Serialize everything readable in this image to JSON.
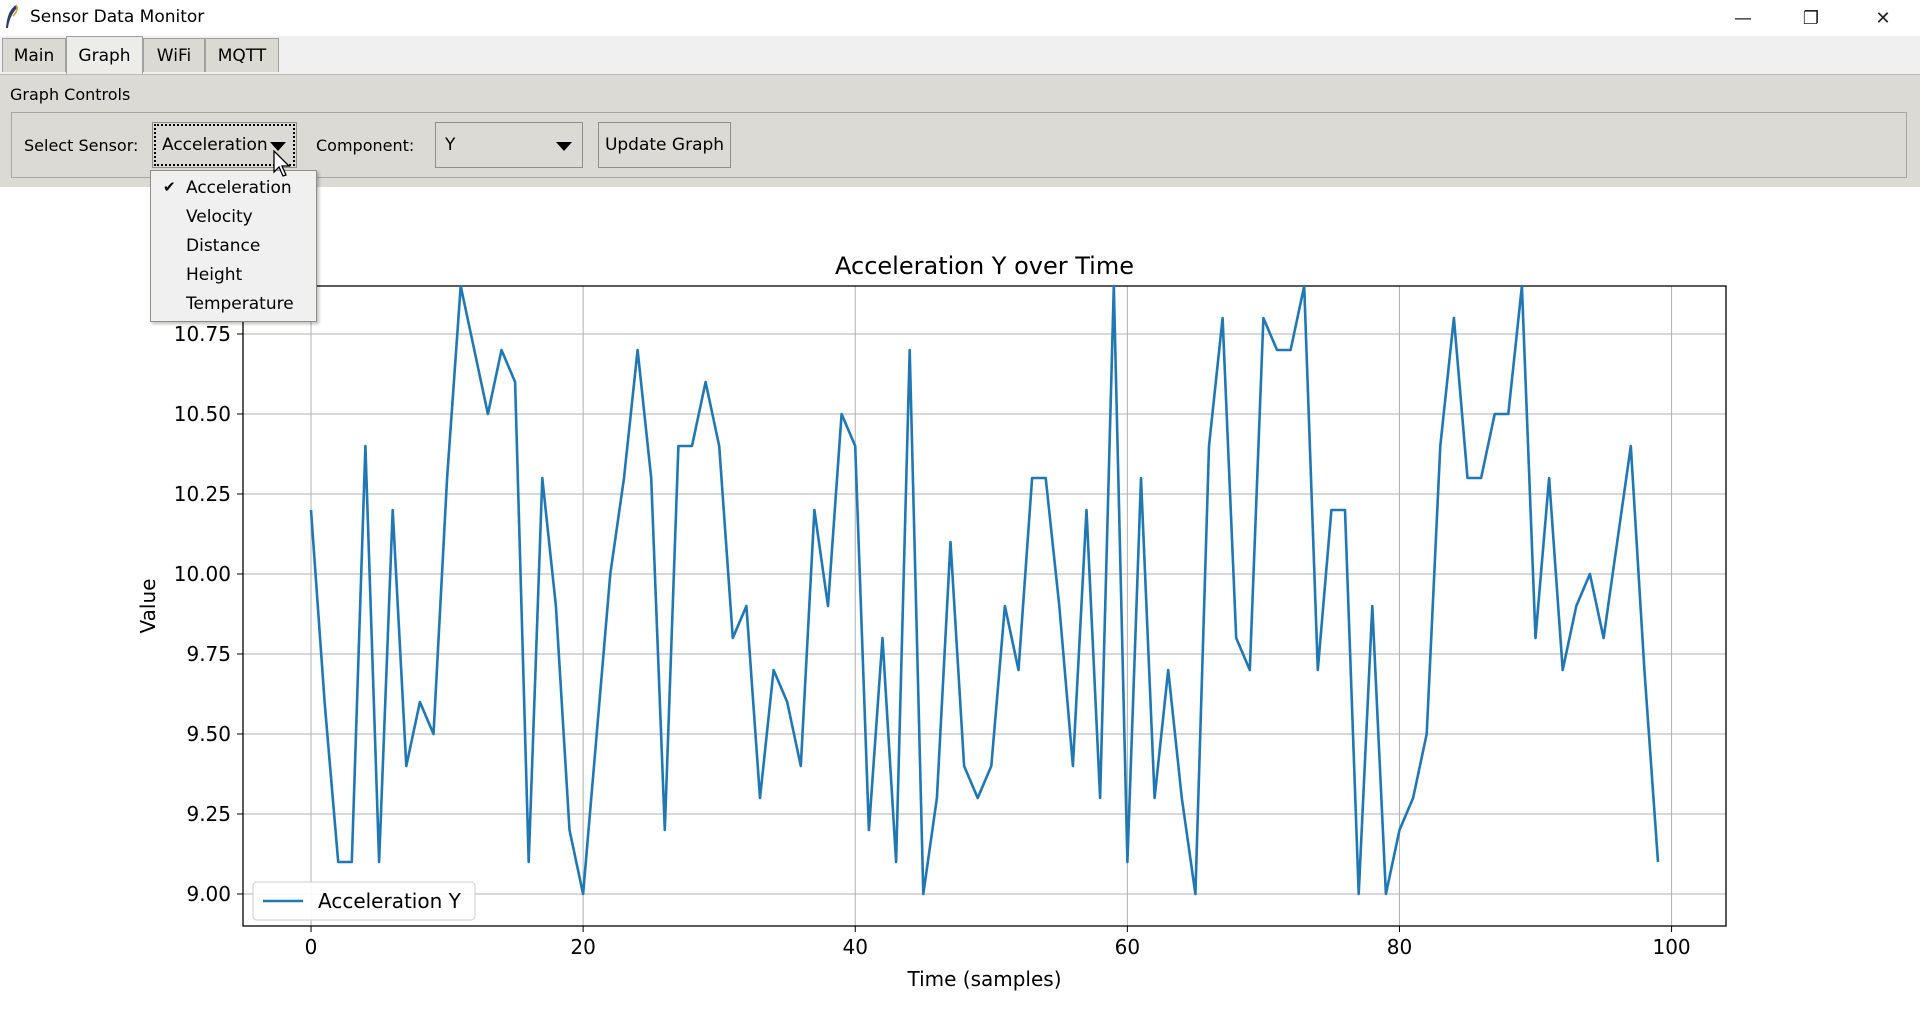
{
  "window": {
    "title": "Sensor Data Monitor",
    "controls": {
      "minimize": "—",
      "restore": "❐",
      "close": "✕"
    }
  },
  "tabs": [
    {
      "label": "Main"
    },
    {
      "label": "Graph"
    },
    {
      "label": "WiFi"
    },
    {
      "label": "MQTT"
    }
  ],
  "active_tab": "Graph",
  "graph_controls": {
    "title": "Graph Controls",
    "sensor_label": "Select Sensor:",
    "sensor_value": "Acceleration",
    "component_label": "Component:",
    "component_value": "Y",
    "update_button": "Update Graph"
  },
  "sensor_dropdown": {
    "options": [
      "Acceleration",
      "Velocity",
      "Distance",
      "Height",
      "Temperature"
    ],
    "checked": "Acceleration",
    "check_mark": "✔"
  },
  "chart_data": {
    "type": "line",
    "title": "Acceleration Y over Time",
    "xlabel": "Time (samples)",
    "ylabel": "Value",
    "xlim": [
      -5,
      104
    ],
    "ylim": [
      8.9,
      10.9
    ],
    "xticks": [
      0,
      20,
      40,
      60,
      80,
      100
    ],
    "yticks": [
      9.0,
      9.25,
      9.5,
      9.75,
      10.0,
      10.25,
      10.5,
      10.75
    ],
    "ytick_labels": [
      "9.00",
      "9.25",
      "9.50",
      "9.75",
      "10.00",
      "10.25",
      "10.50",
      "10.75"
    ],
    "grid": true,
    "legend_position": "lower-left",
    "series": [
      {
        "name": "Acceleration Y",
        "color": "#1f77b4",
        "x": [
          0,
          1,
          2,
          3,
          4,
          5,
          6,
          7,
          8,
          9,
          10,
          11,
          12,
          13,
          14,
          15,
          16,
          17,
          18,
          19,
          20,
          21,
          22,
          23,
          24,
          25,
          26,
          27,
          28,
          29,
          30,
          31,
          32,
          33,
          34,
          35,
          36,
          37,
          38,
          39,
          40,
          41,
          42,
          43,
          44,
          45,
          46,
          47,
          48,
          49,
          50,
          51,
          52,
          53,
          54,
          55,
          56,
          57,
          58,
          59,
          60,
          61,
          62,
          63,
          64,
          65,
          66,
          67,
          68,
          69,
          70,
          71,
          72,
          73,
          74,
          75,
          76,
          77,
          78,
          79,
          80,
          81,
          82,
          83,
          84,
          85,
          86,
          87,
          88,
          89,
          90,
          91,
          92,
          93,
          94,
          95,
          96,
          97,
          98,
          99
        ],
        "values": [
          10.2,
          9.6,
          9.1,
          9.1,
          10.4,
          9.1,
          10.2,
          9.4,
          9.6,
          9.5,
          10.3,
          10.9,
          10.7,
          10.5,
          10.7,
          10.6,
          9.1,
          10.3,
          9.9,
          9.2,
          9.0,
          9.5,
          10.0,
          10.3,
          10.7,
          10.3,
          9.2,
          10.4,
          10.4,
          10.6,
          10.4,
          9.8,
          9.9,
          9.3,
          9.7,
          9.6,
          9.4,
          10.2,
          9.9,
          10.5,
          10.4,
          9.2,
          9.8,
          9.1,
          10.7,
          9.0,
          9.3,
          10.1,
          9.4,
          9.3,
          9.4,
          9.9,
          9.7,
          10.3,
          10.3,
          9.9,
          9.4,
          10.2,
          9.3,
          10.9,
          9.1,
          10.3,
          9.3,
          9.7,
          9.3,
          9.0,
          10.4,
          10.8,
          9.8,
          9.7,
          10.8,
          10.7,
          10.7,
          10.9,
          9.7,
          10.2,
          10.2,
          9.0,
          9.9,
          9.0,
          9.2,
          9.3,
          9.5,
          10.4,
          10.8,
          10.3,
          10.3,
          10.5,
          10.5,
          10.9,
          9.8,
          10.3,
          9.7,
          9.9,
          10.0,
          9.8,
          10.1,
          10.4,
          9.7,
          9.1
        ]
      }
    ]
  }
}
